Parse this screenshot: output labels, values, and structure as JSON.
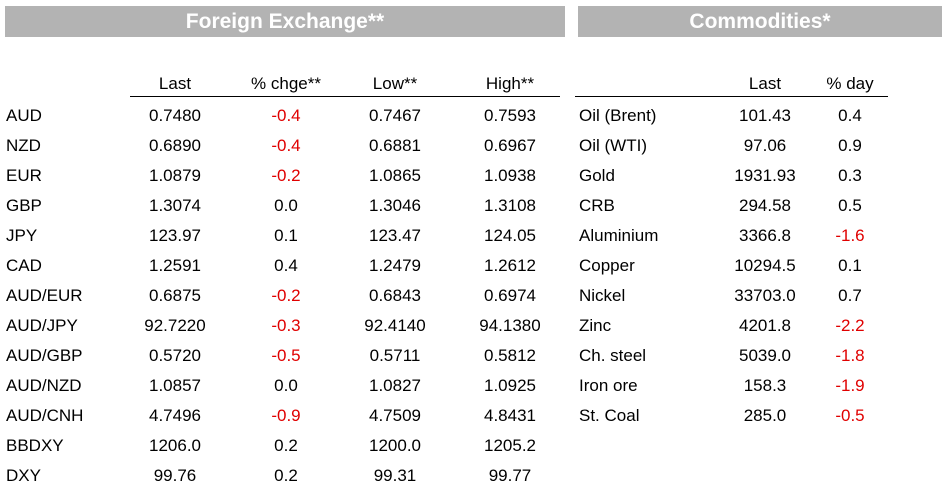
{
  "fx": {
    "title": "Foreign Exchange**",
    "headers": {
      "last": "Last",
      "chg": "% chge**",
      "low": "Low**",
      "high": "High**"
    },
    "rows": [
      {
        "name": "AUD",
        "last": "0.7480",
        "chg": "-0.4",
        "low": "0.7467",
        "high": "0.7593"
      },
      {
        "name": "NZD",
        "last": "0.6890",
        "chg": "-0.4",
        "low": "0.6881",
        "high": "0.6967"
      },
      {
        "name": "EUR",
        "last": "1.0879",
        "chg": "-0.2",
        "low": "1.0865",
        "high": "1.0938"
      },
      {
        "name": "GBP",
        "last": "1.3074",
        "chg": "0.0",
        "low": "1.3046",
        "high": "1.3108"
      },
      {
        "name": "JPY",
        "last": "123.97",
        "chg": "0.1",
        "low": "123.47",
        "high": "124.05"
      },
      {
        "name": "CAD",
        "last": "1.2591",
        "chg": "0.4",
        "low": "1.2479",
        "high": "1.2612"
      },
      {
        "name": "AUD/EUR",
        "last": "0.6875",
        "chg": "-0.2",
        "low": "0.6843",
        "high": "0.6974"
      },
      {
        "name": "AUD/JPY",
        "last": "92.7220",
        "chg": "-0.3",
        "low": "92.4140",
        "high": "94.1380"
      },
      {
        "name": "AUD/GBP",
        "last": "0.5720",
        "chg": "-0.5",
        "low": "0.5711",
        "high": "0.5812"
      },
      {
        "name": "AUD/NZD",
        "last": "1.0857",
        "chg": "0.0",
        "low": "1.0827",
        "high": "1.0925"
      },
      {
        "name": "AUD/CNH",
        "last": "4.7496",
        "chg": "-0.9",
        "low": "4.7509",
        "high": "4.8431"
      },
      {
        "name": "BBDXY",
        "last": "1206.0",
        "chg": "0.2",
        "low": "1200.0",
        "high": "1205.2"
      },
      {
        "name": "DXY",
        "last": "99.76",
        "chg": "0.2",
        "low": "99.31",
        "high": "99.77"
      }
    ]
  },
  "commodities": {
    "title": "Commodities*",
    "headers": {
      "last": "Last",
      "day": "% day"
    },
    "rows": [
      {
        "name": "Oil (Brent)",
        "last": "101.43",
        "day": "0.4"
      },
      {
        "name": "Oil (WTI)",
        "last": "97.06",
        "day": "0.9"
      },
      {
        "name": "Gold",
        "last": "1931.93",
        "day": "0.3"
      },
      {
        "name": "CRB",
        "last": "294.58",
        "day": "0.5"
      },
      {
        "name": "Aluminium",
        "last": "3366.8",
        "day": "-1.6"
      },
      {
        "name": "Copper",
        "last": "10294.5",
        "day": "0.1"
      },
      {
        "name": "Nickel",
        "last": "33703.0",
        "day": "0.7"
      },
      {
        "name": "Zinc",
        "last": "4201.8",
        "day": "-2.2"
      },
      {
        "name": "Ch. steel",
        "last": "5039.0",
        "day": "-1.8"
      },
      {
        "name": "Iron ore",
        "last": "158.3",
        "day": "-1.9"
      },
      {
        "name": "St. Coal",
        "last": "285.0",
        "day": "-0.5"
      }
    ]
  },
  "colors": {
    "banner_bg": "#b3b3b3",
    "negative": "#e00000"
  }
}
